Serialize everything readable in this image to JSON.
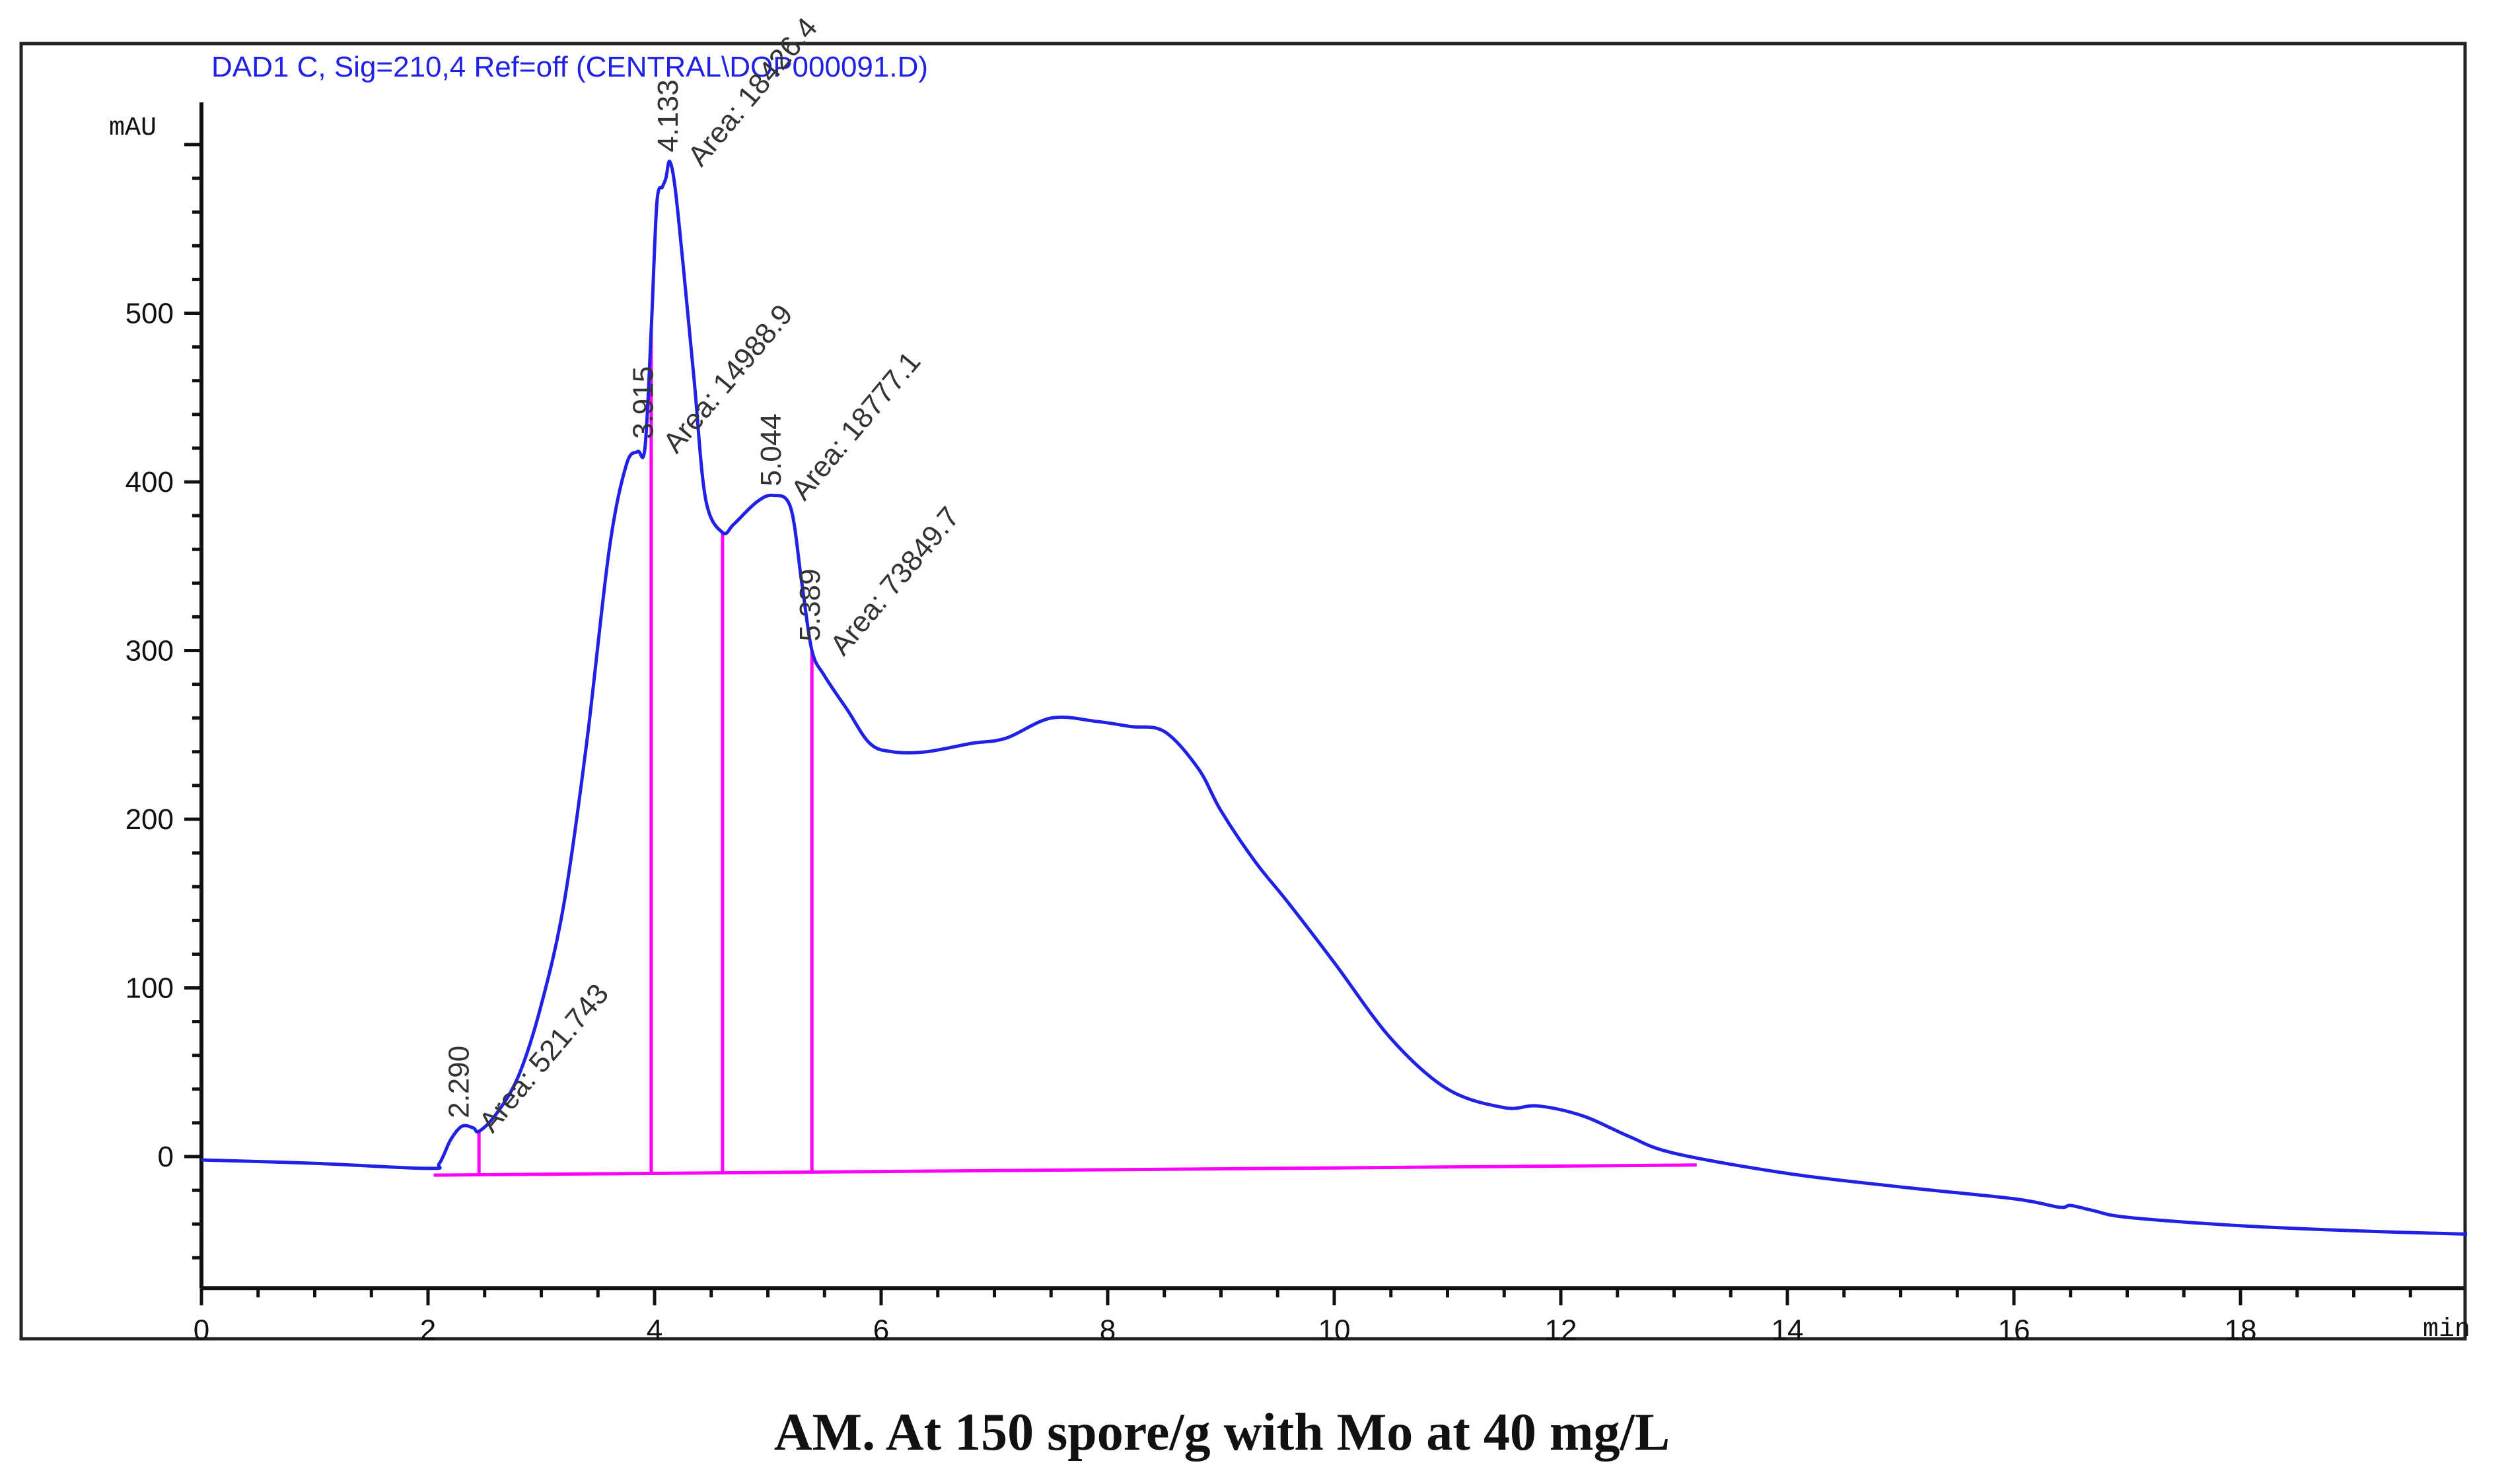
{
  "chart_data": {
    "type": "line",
    "title": "DAD1 C, Sig=210,4 Ref=off (CENTRAL\\DOP000091.D)",
    "ylabel": "mAU",
    "xlabel": "min",
    "caption": "AM. At 150 spore/g with Mo at 40 mg/L",
    "xlim": [
      0,
      20
    ],
    "ylim": [
      -78,
      625
    ],
    "x_ticks": [
      0,
      2,
      4,
      6,
      8,
      10,
      12,
      14,
      16,
      18
    ],
    "x_tick_labels": [
      "0",
      "2",
      "4",
      "6",
      "8",
      "10",
      "12",
      "14",
      "16",
      "18"
    ],
    "y_ticks": [
      0,
      100,
      200,
      300,
      400,
      500
    ],
    "y_tick_labels": [
      "0",
      "100",
      "200",
      "300",
      "400",
      "500"
    ],
    "grid": false,
    "series": [
      {
        "name": "DAD1 C 210 nm",
        "color": "#1f22e6",
        "x": [
          0,
          1.0,
          2.0,
          2.1,
          2.2,
          2.3,
          2.4,
          2.45,
          2.6,
          2.8,
          3.0,
          3.2,
          3.4,
          3.6,
          3.75,
          3.85,
          3.915,
          3.97,
          4.02,
          4.07,
          4.1,
          4.133,
          4.18,
          4.25,
          4.35,
          4.45,
          4.6,
          4.7,
          4.9,
          5.044,
          5.2,
          5.3,
          5.389,
          5.5,
          5.7,
          5.9,
          6.1,
          6.4,
          6.8,
          7.1,
          7.5,
          7.9,
          8.2,
          8.5,
          8.8,
          9.0,
          9.3,
          9.6,
          10.0,
          10.5,
          11.0,
          11.5,
          11.8,
          12.2,
          12.6,
          13.0,
          14.0,
          15.0,
          16.0,
          16.4,
          16.5,
          16.7,
          17.0,
          18.0,
          19.0,
          20.0
        ],
        "y": [
          -2,
          -4,
          -7,
          -4,
          10,
          18,
          17,
          15,
          25,
          48,
          90,
          150,
          245,
          360,
          410,
          418,
          420,
          490,
          565,
          575,
          580,
          590,
          575,
          530,
          460,
          390,
          370,
          375,
          388,
          392,
          385,
          340,
          300,
          285,
          265,
          245,
          240,
          240,
          245,
          248,
          260,
          258,
          255,
          252,
          230,
          205,
          175,
          150,
          115,
          70,
          40,
          29,
          30,
          24,
          12,
          2,
          -10,
          -18,
          -25,
          -30,
          -29,
          -32,
          -36,
          -41,
          -44,
          -46
        ]
      }
    ],
    "peaks": [
      {
        "rt": "2.290",
        "rt_value": 2.29,
        "area": "Area: 521.743",
        "start": 2.05,
        "end": 2.45
      },
      {
        "rt": "3.915",
        "rt_value": 3.915,
        "area": "Area: 14988.9",
        "start": 2.45,
        "end": 3.97
      },
      {
        "rt": "4.133",
        "rt_value": 4.133,
        "area": "Area: 18426.4",
        "start": 3.97,
        "end": 4.6
      },
      {
        "rt": "5.044",
        "rt_value": 5.044,
        "area": "Area: 18777.1",
        "start": 4.6,
        "end": 5.389
      },
      {
        "rt": "5.389",
        "rt_value": 5.389,
        "area": "Area: 73849.7",
        "start": 5.389,
        "end": 13.2
      }
    ],
    "baseline": {
      "x_start": 2.05,
      "y_start": -11,
      "x_end": 13.2,
      "y_end": -5
    }
  }
}
